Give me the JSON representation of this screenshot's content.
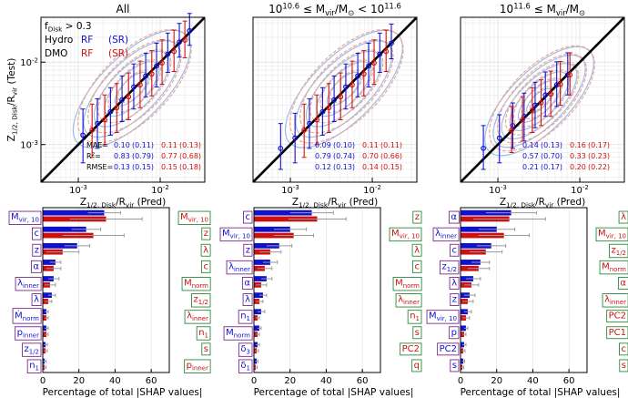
{
  "colors": {
    "hydro": "#1010d0",
    "dmo": "#cc1111",
    "hydro_contour": "#9fbde6",
    "dmo_contour": "#f0a890",
    "onetoone": "#000000",
    "grid": "#dddddd",
    "errbar_grey": "#9a9a9a"
  },
  "chart_data": [
    {
      "type": "scatter",
      "panel": "scatter-all",
      "title": "All",
      "xlabel": "Z_{1/2, Disk}/R_{vir} (Pred)",
      "ylabel": "Z_{1/2, Disk}/R_{vir} (Test)",
      "xscale": "log",
      "yscale": "log",
      "xlim": [
        0.00035,
        0.035
      ],
      "ylim": [
        0.00035,
        0.035
      ],
      "xticklabels": [
        "10^{-3}",
        "10^{-2}"
      ],
      "yticklabels": [
        "10^{-3}",
        "10^{-2}"
      ],
      "legend": {
        "cut": "f_{Disk} > 0.3",
        "hydro": "Hydro",
        "dmo": "DMO",
        "rf": "RF",
        "sr": "(SR)"
      },
      "series": [
        {
          "name": "Hydro RF",
          "x": [
            0.0012,
            0.0018,
            0.0026,
            0.0036,
            0.005,
            0.007,
            0.0095,
            0.013,
            0.018,
            0.024
          ],
          "y": [
            0.0013,
            0.0018,
            0.0025,
            0.0035,
            0.005,
            0.0068,
            0.009,
            0.0125,
            0.0175,
            0.024
          ],
          "yerr_lo": [
            0.0007,
            0.0009,
            0.0012,
            0.0016,
            0.0023,
            0.003,
            0.004,
            0.005,
            0.006,
            0.008
          ],
          "yerr_hi": [
            0.0014,
            0.0018,
            0.0024,
            0.0033,
            0.0045,
            0.006,
            0.008,
            0.01,
            0.012,
            0.015
          ]
        },
        {
          "name": "DMO RF",
          "x": [
            0.0014,
            0.002,
            0.0028,
            0.0039,
            0.0054,
            0.0075,
            0.01,
            0.014,
            0.019
          ],
          "y": [
            0.0015,
            0.002,
            0.0028,
            0.0038,
            0.0053,
            0.0072,
            0.0098,
            0.0135,
            0.0185
          ],
          "yerr_lo": [
            0.0008,
            0.001,
            0.0014,
            0.0018,
            0.0025,
            0.0033,
            0.0044,
            0.0058,
            0.0072
          ],
          "yerr_hi": [
            0.0016,
            0.002,
            0.0027,
            0.0036,
            0.005,
            0.0066,
            0.0088,
            0.011,
            0.013
          ]
        }
      ],
      "metrics": [
        {
          "label": "MAE=",
          "hydro_rf": "0.10",
          "hydro_sr": "(0.11)",
          "dmo_rf": "0.11",
          "dmo_sr": "(0.13)"
        },
        {
          "label": "R^2=",
          "hydro_rf": "0.83",
          "hydro_sr": "(0.79)",
          "dmo_rf": "0.77",
          "dmo_sr": "(0.68)"
        },
        {
          "label": "RMSE=",
          "hydro_rf": "0.13",
          "hydro_sr": "(0.15)",
          "dmo_rf": "0.15",
          "dmo_sr": "(0.18)"
        }
      ]
    },
    {
      "type": "scatter",
      "panel": "scatter-mid",
      "title": "10^{10.6} ≤ M_{vir}/M_⊙ < 10^{11.6}",
      "xlabel": "Z_{1/2, Disk}/R_{vir} (Pred)",
      "xscale": "log",
      "yscale": "log",
      "xlim": [
        0.00035,
        0.035
      ],
      "ylim": [
        0.00035,
        0.035
      ],
      "xticklabels": [
        "10^{-3}",
        "10^{-2}"
      ],
      "series": [
        {
          "name": "Hydro RF",
          "x": [
            0.0008,
            0.0012,
            0.0018,
            0.0026,
            0.0036,
            0.005,
            0.007,
            0.0095,
            0.013,
            0.018
          ],
          "y": [
            0.0009,
            0.0012,
            0.0018,
            0.0025,
            0.0035,
            0.005,
            0.0068,
            0.009,
            0.0125,
            0.017
          ],
          "yerr_lo": [
            0.0004,
            0.0006,
            0.0009,
            0.0012,
            0.0016,
            0.0023,
            0.003,
            0.004,
            0.005,
            0.006
          ],
          "yerr_hi": [
            0.0009,
            0.0012,
            0.0018,
            0.0024,
            0.0033,
            0.0045,
            0.006,
            0.008,
            0.01,
            0.012
          ]
        },
        {
          "name": "DMO RF",
          "x": [
            0.0014,
            0.002,
            0.0028,
            0.0039,
            0.0054,
            0.0075,
            0.01,
            0.014
          ],
          "y": [
            0.0015,
            0.002,
            0.0028,
            0.0038,
            0.0053,
            0.0072,
            0.0098,
            0.0135
          ],
          "yerr_lo": [
            0.0008,
            0.001,
            0.0014,
            0.0018,
            0.0025,
            0.0033,
            0.0044,
            0.0058
          ],
          "yerr_hi": [
            0.0016,
            0.002,
            0.0027,
            0.0036,
            0.005,
            0.0066,
            0.0088,
            0.011
          ]
        }
      ],
      "metrics": [
        {
          "hydro_rf": "0.09",
          "hydro_sr": "(0.10)",
          "dmo_rf": "0.11",
          "dmo_sr": "(0.11)"
        },
        {
          "hydro_rf": "0.79",
          "hydro_sr": "(0.74)",
          "dmo_rf": "0.70",
          "dmo_sr": "(0.66)"
        },
        {
          "hydro_rf": "0.12",
          "hydro_sr": "(0.13)",
          "dmo_rf": "0.14",
          "dmo_sr": "(0.15)"
        }
      ]
    },
    {
      "type": "scatter",
      "panel": "scatter-high",
      "title": "10^{11.6} ≤ M_{vir}/M_⊙",
      "xlabel": "Z_{1/2, Disk}/R_{vir} (Pred)",
      "xscale": "log",
      "yscale": "log",
      "xlim": [
        0.00035,
        0.035
      ],
      "ylim": [
        0.00035,
        0.035
      ],
      "xticklabels": [
        "10^{-3}",
        "10^{-2}"
      ],
      "series": [
        {
          "name": "Hydro RF",
          "x": [
            0.0007,
            0.0011,
            0.0016,
            0.0022,
            0.003,
            0.004,
            0.0055,
            0.0075
          ],
          "y": [
            0.0009,
            0.0012,
            0.0017,
            0.0022,
            0.003,
            0.004,
            0.0053,
            0.007
          ],
          "yerr_lo": [
            0.0004,
            0.0006,
            0.0008,
            0.0011,
            0.0014,
            0.0018,
            0.0024,
            0.003
          ],
          "yerr_hi": [
            0.0008,
            0.0011,
            0.0015,
            0.002,
            0.0027,
            0.0036,
            0.0048,
            0.006
          ]
        },
        {
          "name": "DMO RF",
          "x": [
            0.0014,
            0.0019,
            0.0025,
            0.0032,
            0.0042,
            0.0055,
            0.0072
          ],
          "y": [
            0.0015,
            0.002,
            0.0026,
            0.0032,
            0.0041,
            0.0054,
            0.007
          ],
          "yerr_lo": [
            0.0007,
            0.0009,
            0.0012,
            0.0015,
            0.0019,
            0.0024,
            0.003
          ],
          "yerr_hi": [
            0.0014,
            0.0018,
            0.0023,
            0.0029,
            0.0037,
            0.0048,
            0.006
          ]
        }
      ],
      "metrics": [
        {
          "hydro_rf": "0.14",
          "hydro_sr": "(0.13)",
          "dmo_rf": "0.16",
          "dmo_sr": "(0.17)"
        },
        {
          "hydro_rf": "0.57",
          "hydro_sr": "(0.70)",
          "dmo_rf": "0.33",
          "dmo_sr": "(0.23)"
        },
        {
          "hydro_rf": "0.21",
          "hydro_sr": "(0.17)",
          "dmo_rf": "0.20",
          "dmo_sr": "(0.22)"
        }
      ]
    },
    {
      "type": "bar",
      "panel": "shap-all",
      "orientation": "horizontal",
      "xlabel": "Percentage of total |SHAP values|",
      "xlim": [
        0,
        70
      ],
      "xticks": [
        0,
        20,
        40,
        60
      ],
      "hydro_labels": [
        "M_{vir, 10}",
        "c",
        "z",
        "α",
        "λ_{inner}",
        "λ",
        "Ṁ_{norm}",
        "p_{inner}",
        "z_{1/2}",
        "n_1"
      ],
      "dmo_labels": [
        "M_{vir, 10}",
        "z",
        "λ",
        "c",
        "M_{norm}",
        "z_{1/2}",
        "λ_{inner}",
        "n_1",
        "s",
        "p_{inner}"
      ],
      "hydro_values": [
        34,
        24,
        19,
        7,
        6,
        5,
        2,
        2,
        1.5,
        1
      ],
      "hydro_err": [
        9,
        8,
        7,
        3,
        3,
        2,
        1,
        1,
        1,
        0.8
      ],
      "dmo_values": [
        35,
        28,
        11,
        6,
        4,
        3,
        2,
        2,
        1.5,
        1
      ],
      "dmo_err": [
        20,
        17,
        9,
        4,
        3,
        2,
        1,
        1,
        1,
        0.8
      ]
    },
    {
      "type": "bar",
      "panel": "shap-mid",
      "orientation": "horizontal",
      "xlabel": "Percentage of total |SHAP values|",
      "xlim": [
        0,
        70
      ],
      "xticks": [
        0,
        20,
        40,
        60
      ],
      "hydro_labels": [
        "c",
        "M_{vir, 10}",
        "z",
        "λ_{inner}",
        "α",
        "λ",
        "n_1",
        "M_{norm}",
        "δ_3",
        "δ_1"
      ],
      "dmo_labels": [
        "z",
        "M_{vir, 10}",
        "λ",
        "c",
        "M_{norm}",
        "λ_{inner}",
        "n_1",
        "s",
        "PC2",
        "q"
      ],
      "hydro_values": [
        32,
        20,
        14,
        9,
        7,
        5,
        4,
        3,
        2,
        1.5
      ],
      "hydro_err": [
        12,
        9,
        7,
        4,
        3,
        2,
        2,
        1,
        1,
        0.8
      ],
      "dmo_values": [
        35,
        22,
        9,
        6,
        4,
        3,
        2,
        2,
        1.5,
        1
      ],
      "dmo_err": [
        16,
        11,
        6,
        4,
        3,
        2,
        1,
        1,
        1,
        0.8
      ]
    },
    {
      "type": "bar",
      "panel": "shap-high",
      "orientation": "horizontal",
      "xlabel": "Percentage of total |SHAP values|",
      "xlim": [
        0,
        70
      ],
      "xticks": [
        0,
        20,
        40,
        60
      ],
      "hydro_labels": [
        "α",
        "λ_{inner}",
        "c",
        "z_{1/2}",
        "λ",
        "z",
        "M_{vir, 10}",
        "p",
        "PC2",
        "s"
      ],
      "dmo_labels": [
        "λ",
        "M_{vir, 10}",
        "z_{1/2}",
        "M_{norm}",
        "α",
        "λ_{inner}",
        "PC2",
        "PC1",
        "c",
        "s"
      ],
      "hydro_values": [
        28,
        20,
        17,
        11,
        7,
        5,
        4,
        3,
        2,
        1.5
      ],
      "hydro_err": [
        14,
        10,
        8,
        5,
        4,
        3,
        2,
        1,
        1,
        0.8
      ],
      "dmo_values": [
        27,
        24,
        14,
        10,
        6,
        4,
        3,
        2,
        1.5,
        1
      ],
      "dmo_err": [
        20,
        14,
        9,
        6,
        4,
        3,
        2,
        1,
        1,
        0.8
      ]
    }
  ]
}
